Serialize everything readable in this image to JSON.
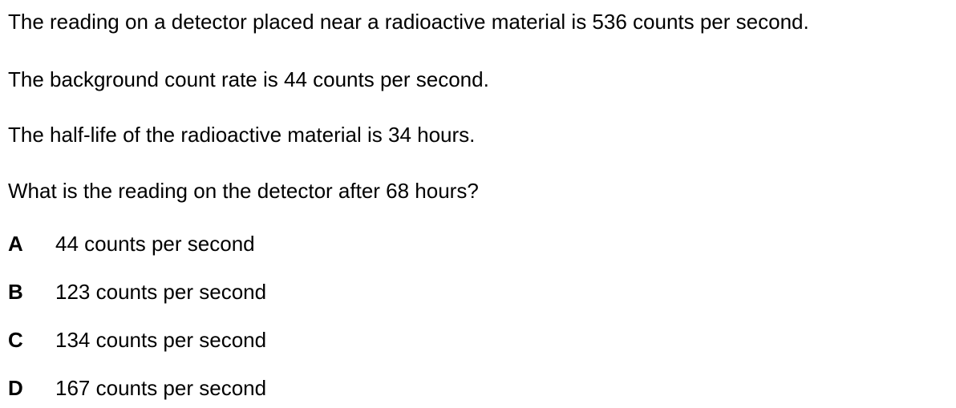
{
  "question": {
    "paragraphs": [
      "The reading on a detector placed near a radioactive material is 536 counts per second.",
      "The background count rate is 44 counts per second.",
      "The half-life of the radioactive material is 34 hours.",
      "What is the reading on the detector after 68 hours?"
    ]
  },
  "options": [
    {
      "letter": "A",
      "text": "44 counts per second"
    },
    {
      "letter": "B",
      "text": "123 counts per second"
    },
    {
      "letter": "C",
      "text": "134 counts per second"
    },
    {
      "letter": "D",
      "text": "167 counts per second"
    }
  ]
}
